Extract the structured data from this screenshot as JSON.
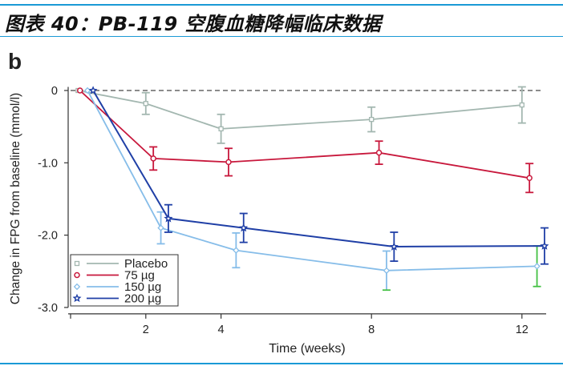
{
  "header": {
    "title": "图表 40：PB-119 空腹血糖降幅临床数据"
  },
  "colors": {
    "rule": "#1a9ad6",
    "placebo": "#a3b7b0",
    "d75": "#c8183c",
    "d150": "#86bde9",
    "d200": "#1f3fa6",
    "green_err": "#44c144"
  },
  "chart_data": {
    "type": "line",
    "panel_label": "b",
    "title": "",
    "xlabel": "Time (weeks)",
    "ylabel": "Change in FPG from baseline (mmol/l)",
    "xlim": [
      0,
      12.7
    ],
    "ylim": [
      -3.0,
      0.05
    ],
    "xticks": [
      2,
      4,
      8,
      12
    ],
    "xtick_labels": [
      "2",
      "4",
      "8",
      "12"
    ],
    "yticks": [
      0,
      -1.0,
      -2.0,
      -3.0
    ],
    "ytick_labels": [
      "0",
      "-1.0",
      "-2.0",
      "-3.0"
    ],
    "reference_line": {
      "y": 0,
      "style": "dashed"
    },
    "legend": {
      "placement": "bottom-left",
      "entries": [
        "Placebo",
        "75 µg",
        "150 µg",
        "200 µg"
      ]
    },
    "series": [
      {
        "name": "Placebo",
        "marker": "square",
        "color_key": "placebo",
        "x": [
          0.2,
          2.0,
          4.0,
          8.0,
          12.0
        ],
        "y": [
          0,
          -0.18,
          -0.53,
          -0.4,
          -0.2
        ],
        "err": [
          0,
          0.15,
          0.2,
          0.17,
          0.25
        ]
      },
      {
        "name": "75 µg",
        "marker": "circle",
        "color_key": "d75",
        "x": [
          0.25,
          2.2,
          4.2,
          8.2,
          12.2
        ],
        "y": [
          0,
          -0.94,
          -0.99,
          -0.86,
          -1.21
        ],
        "err": [
          0,
          0.16,
          0.19,
          0.16,
          0.2
        ]
      },
      {
        "name": "150 µg",
        "marker": "diamond",
        "color_key": "d150",
        "x": [
          0.45,
          2.4,
          4.4,
          8.4,
          12.4
        ],
        "y": [
          0,
          -1.9,
          -2.21,
          -2.49,
          -2.43
        ],
        "err": [
          0,
          0.22,
          0.24,
          0.27,
          0.28
        ]
      },
      {
        "name": "200 µg",
        "marker": "star",
        "color_key": "d200",
        "x": [
          0.6,
          2.6,
          4.6,
          8.6,
          12.6
        ],
        "y": [
          0,
          -1.77,
          -1.9,
          -2.16,
          -2.15
        ],
        "err": [
          0,
          0.19,
          0.2,
          0.2,
          0.25
        ]
      }
    ]
  }
}
